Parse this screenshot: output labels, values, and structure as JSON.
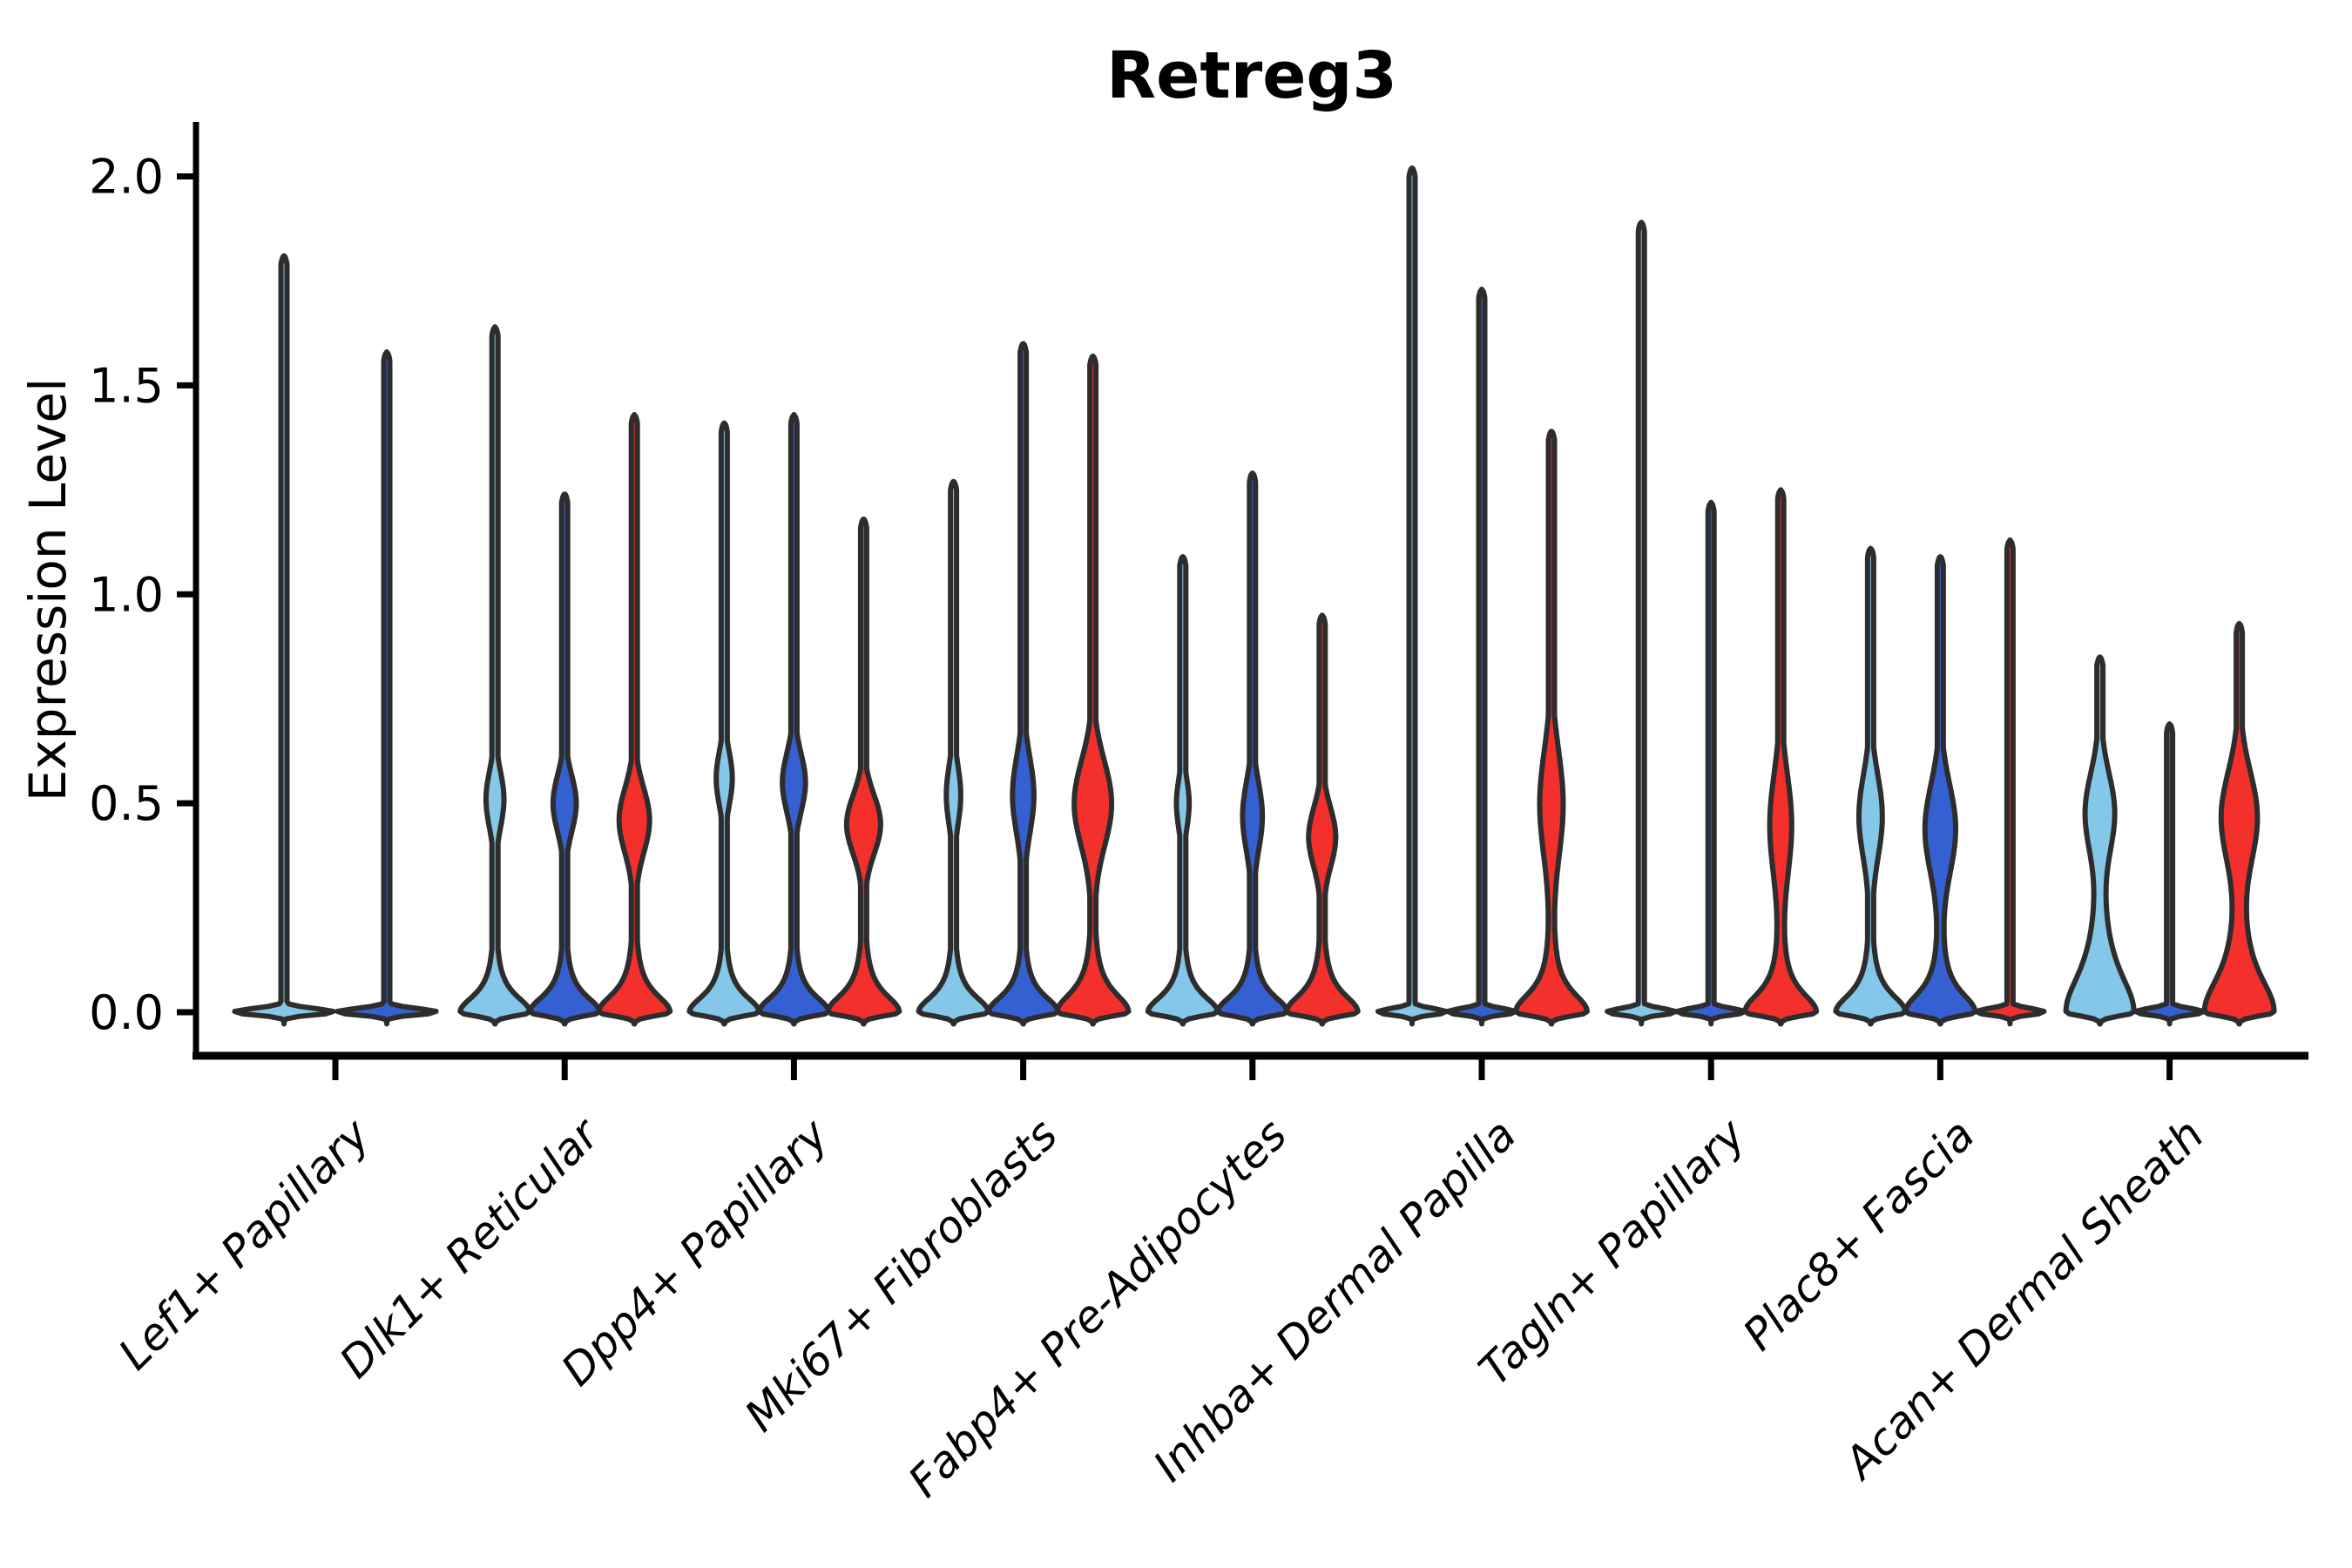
{
  "chart_data": {
    "type": "violin",
    "title": "Retreg3",
    "ylabel": "Expression Level",
    "xlabel": "",
    "grid": false,
    "legend": "none",
    "ylim": [
      -0.11,
      2.13
    ],
    "ytick_values": [
      0.0,
      0.5,
      1.0,
      1.5,
      2.0
    ],
    "ytick_labels": [
      "0.0",
      "0.5",
      "1.0",
      "1.5",
      "2.0"
    ],
    "categories": [
      "Lef1+ Papillary",
      "Dlk1+ Reticular",
      "Dpp4+ Papillary",
      "Mki67+ Fibroblasts",
      "Fabp4+ Pre-Adipocytes",
      "Inhba+ Dermal Papilla",
      "Tagln+ Papillary",
      "Plac8+ Fascia",
      "Acan+ Dermal Sheath"
    ],
    "outline_color": "#2D2D2D",
    "series": [
      {
        "name": "group-light-blue",
        "color": "#85C7E8",
        "violins": [
          {
            "max": 1.81,
            "shape": "flat",
            "width": 58,
            "offset": -59
          },
          {
            "max": 1.64,
            "shape": "bulge",
            "base_w": 40,
            "base_d": 0.05,
            "body_c": 0.51,
            "body_s": 0.095,
            "body_w": 10
          },
          {
            "max": 1.41,
            "shape": "bulge",
            "base_w": 40,
            "base_d": 0.05,
            "body_c": 0.56,
            "body_s": 0.09,
            "body_w": 9
          },
          {
            "max": 1.27,
            "shape": "bulge",
            "base_w": 40,
            "base_d": 0.05,
            "body_c": 0.52,
            "body_s": 0.1,
            "body_w": 8
          },
          {
            "max": 1.09,
            "shape": "bulge",
            "base_w": 40,
            "base_d": 0.05,
            "body_c": 0.5,
            "body_s": 0.085,
            "body_w": 7
          },
          {
            "max": 2.02,
            "shape": "flat",
            "width": 40
          },
          {
            "max": 1.89,
            "shape": "flat",
            "width": 40
          },
          {
            "max": 1.11,
            "shape": "bulge",
            "base_w": 40,
            "base_d": 0.055,
            "body_c": 0.47,
            "body_s": 0.14,
            "body_w": 13
          },
          {
            "max": 0.85,
            "shape": "bulge",
            "base_w": 39,
            "base_d": 0.12,
            "body_c": 0.48,
            "body_s": 0.13,
            "body_w": 15
          }
        ]
      },
      {
        "name": "group-dark-blue",
        "color": "#3560D2",
        "violins": [
          {
            "max": 1.58,
            "shape": "flat",
            "width": 58,
            "offset": 59
          },
          {
            "max": 1.24,
            "shape": "bulge",
            "base_w": 40,
            "base_d": 0.05,
            "body_c": 0.5,
            "body_s": 0.095,
            "body_w": 13
          },
          {
            "max": 1.43,
            "shape": "bulge",
            "base_w": 40,
            "base_d": 0.05,
            "body_c": 0.55,
            "body_s": 0.1,
            "body_w": 13
          },
          {
            "max": 1.6,
            "shape": "bulge",
            "base_w": 40,
            "base_d": 0.05,
            "body_c": 0.52,
            "body_s": 0.13,
            "body_w": 12
          },
          {
            "max": 1.29,
            "shape": "bulge",
            "base_w": 40,
            "base_d": 0.05,
            "body_c": 0.47,
            "body_s": 0.115,
            "body_w": 11
          },
          {
            "max": 1.73,
            "shape": "flat",
            "width": 40
          },
          {
            "max": 1.22,
            "shape": "flat",
            "width": 40
          },
          {
            "max": 1.09,
            "shape": "bulge",
            "base_w": 40,
            "base_d": 0.06,
            "body_c": 0.44,
            "body_s": 0.15,
            "body_w": 17
          },
          {
            "max": 0.69,
            "shape": "flat",
            "width": 40
          }
        ]
      },
      {
        "name": "group-red",
        "color": "#F4302C",
        "violins": [
          null,
          {
            "max": 1.43,
            "shape": "bulge",
            "base_w": 41,
            "base_d": 0.055,
            "body_c": 0.46,
            "body_s": 0.11,
            "body_w": 17
          },
          {
            "max": 1.18,
            "shape": "bulge",
            "base_w": 41,
            "base_d": 0.055,
            "body_c": 0.45,
            "body_s": 0.1,
            "body_w": 19
          },
          {
            "max": 1.57,
            "shape": "bulge",
            "base_w": 41,
            "base_d": 0.06,
            "body_c": 0.5,
            "body_s": 0.145,
            "body_w": 21
          },
          {
            "max": 0.95,
            "shape": "bulge",
            "base_w": 41,
            "base_d": 0.055,
            "body_c": 0.42,
            "body_s": 0.1,
            "body_w": 15
          },
          {
            "max": 1.39,
            "shape": "bulge",
            "base_w": 41,
            "base_d": 0.06,
            "body_c": 0.5,
            "body_s": 0.18,
            "body_w": 13
          },
          {
            "max": 1.25,
            "shape": "bulge",
            "base_w": 41,
            "base_d": 0.06,
            "body_c": 0.45,
            "body_s": 0.17,
            "body_w": 12
          },
          {
            "max": 1.13,
            "shape": "flat",
            "width": 40
          },
          {
            "max": 0.93,
            "shape": "bulge",
            "base_w": 40,
            "base_d": 0.11,
            "body_c": 0.47,
            "body_s": 0.15,
            "body_w": 19
          }
        ]
      }
    ]
  }
}
